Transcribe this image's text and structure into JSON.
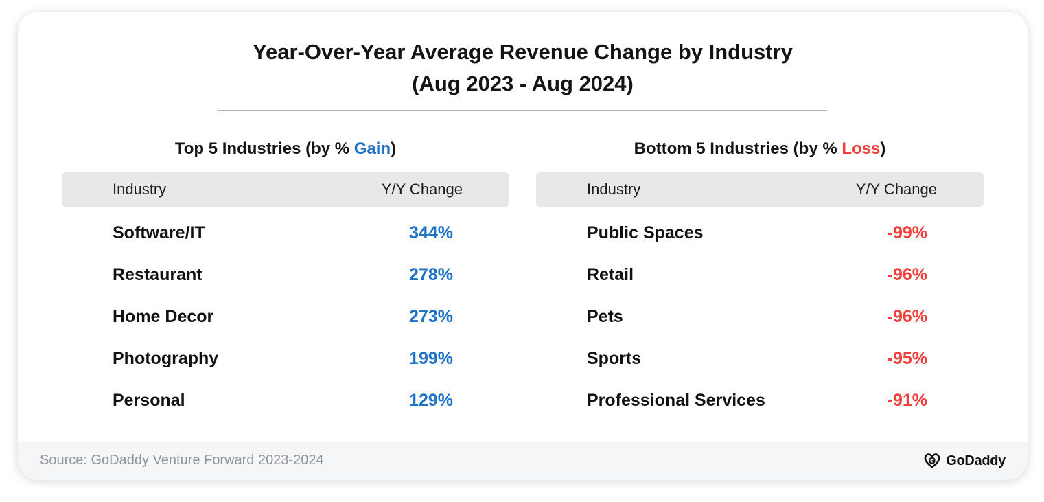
{
  "title": {
    "line1": "Year-Over-Year Average Revenue Change by Industry",
    "line2": "(Aug 2023 - Aug 2024)"
  },
  "top": {
    "heading_prefix": "Top 5 Industries (by % ",
    "heading_highlight": "Gain",
    "heading_suffix": ")",
    "col_industry": "Industry",
    "col_change": "Y/Y Change",
    "rows": [
      {
        "industry": "Software/IT",
        "change": "344%"
      },
      {
        "industry": "Restaurant",
        "change": "278%"
      },
      {
        "industry": "Home Decor",
        "change": "273%"
      },
      {
        "industry": "Photography",
        "change": "199%"
      },
      {
        "industry": "Personal",
        "change": "129%"
      }
    ]
  },
  "bottom": {
    "heading_prefix": "Bottom 5 Industries (by % ",
    "heading_highlight": "Loss",
    "heading_suffix": ")",
    "col_industry": "Industry",
    "col_change": "Y/Y Change",
    "rows": [
      {
        "industry": "Public Spaces",
        "change": "-99%"
      },
      {
        "industry": "Retail",
        "change": "-96%"
      },
      {
        "industry": "Pets",
        "change": "-96%"
      },
      {
        "industry": "Sports",
        "change": "-95%"
      },
      {
        "industry": "Professional Services",
        "change": "-91%"
      }
    ]
  },
  "footer": {
    "source": "Source: GoDaddy Venture Forward 2023-2024",
    "brand": "GoDaddy",
    "brand_icon": "godaddy-logo-icon"
  },
  "colors": {
    "gain": "#1e72c8",
    "loss": "#f1403c",
    "header_bar": "#e7e8ea",
    "rule": "#a9b4c8"
  },
  "chart_data": [
    {
      "type": "table",
      "title": "Top 5 Industries (by % Gain)",
      "columns": [
        "Industry",
        "Y/Y Change"
      ],
      "categories": [
        "Software/IT",
        "Restaurant",
        "Home Decor",
        "Photography",
        "Personal"
      ],
      "values": [
        344,
        278,
        273,
        199,
        129
      ],
      "unit": "%"
    },
    {
      "type": "table",
      "title": "Bottom 5 Industries (by % Loss)",
      "columns": [
        "Industry",
        "Y/Y Change"
      ],
      "categories": [
        "Public Spaces",
        "Retail",
        "Pets",
        "Sports",
        "Professional Services"
      ],
      "values": [
        -99,
        -96,
        -96,
        -95,
        -91
      ],
      "unit": "%"
    }
  ]
}
